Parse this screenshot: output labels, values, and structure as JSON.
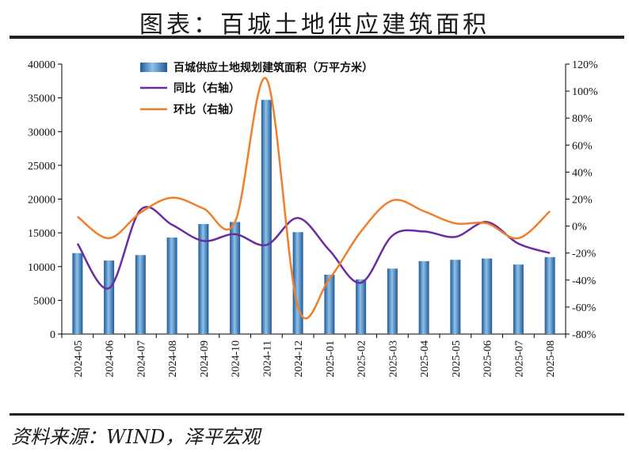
{
  "header": {
    "title": "图表：百城土地供应建筑面积"
  },
  "footer": {
    "source": "资料来源：WIND，泽平宏观"
  },
  "colors": {
    "bar": "#3a78b5",
    "yoy": "#6a2ca0",
    "mom": "#f07f2c",
    "axis": "#000000"
  },
  "chart_data": {
    "type": "bar",
    "categories": [
      "2024-05",
      "2024-06",
      "2024-07",
      "2024-08",
      "2024-09",
      "2024-10",
      "2024-11",
      "2024-12",
      "2025-01",
      "2025-02",
      "2025-03",
      "2025-04",
      "2025-05",
      "2025-06",
      "2025-07",
      "2025-08"
    ],
    "series": [
      {
        "name": "百城供应土地规划建筑面积（万平方米）",
        "type": "bar",
        "axis": "left",
        "values": [
          12000,
          10900,
          11700,
          14300,
          16300,
          16600,
          34700,
          15100,
          8800,
          8100,
          9700,
          10800,
          11000,
          11200,
          10300,
          11400
        ]
      },
      {
        "name": "同比（右轴）",
        "type": "line",
        "axis": "right",
        "values": [
          -13,
          -46,
          12,
          1,
          -11,
          -6,
          -14,
          6,
          -18,
          -42,
          -7,
          -4,
          -8,
          3,
          -13,
          -20
        ]
      },
      {
        "name": "环比（右轴）",
        "type": "line",
        "axis": "right",
        "values": [
          7,
          -9,
          10,
          21,
          13,
          3,
          109,
          -60,
          -39,
          -4,
          19,
          11,
          2,
          2,
          -9,
          11
        ]
      }
    ],
    "ylim": [
      0,
      40000
    ],
    "y_ticks": [
      "0",
      "5000",
      "10000",
      "15000",
      "20000",
      "25000",
      "30000",
      "35000",
      "40000"
    ],
    "y2lim": [
      -80,
      120
    ],
    "y2_ticks": [
      "-80%",
      "-60%",
      "-40%",
      "-20%",
      "0%",
      "20%",
      "40%",
      "60%",
      "80%",
      "100%",
      "120%"
    ],
    "grid": false,
    "legend_position": "top-center"
  }
}
